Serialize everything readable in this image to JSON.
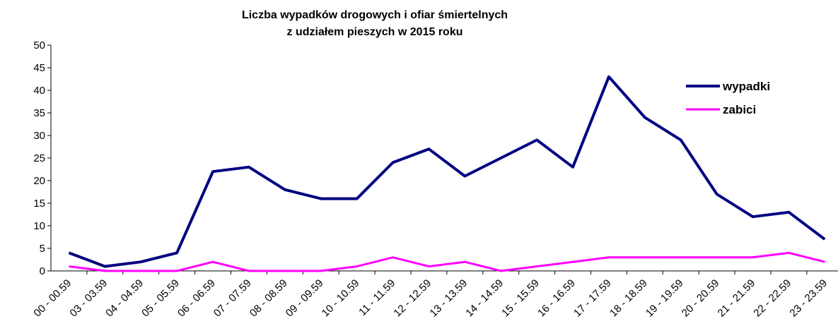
{
  "chart_data": {
    "type": "line",
    "title": [
      "Liczba wypadków drogowych i ofiar śmiertelnych",
      "z udziałem pieszych w 2015 roku"
    ],
    "categories": [
      "00 - 00.59",
      "03 - 03.59",
      "04 - 04.59",
      "05 - 05.59",
      "06 - 06.59",
      "07 - 07.59",
      "08 - 08.59",
      "09 - 09.59",
      "10 - 10.59",
      "11 - 11.59",
      "12 - 12.59",
      "13 - 13.59",
      "14 - 14.59",
      "15 - 15.59",
      "16 - 16.59",
      "17 - 17.59",
      "18 - 18.59",
      "19 - 19.59",
      "20 - 20.59",
      "21 - 21.59",
      "22 - 22.59",
      "23 - 23.59"
    ],
    "series": [
      {
        "name": "wypadki",
        "color": "#000080",
        "values": [
          4,
          1,
          2,
          4,
          22,
          23,
          18,
          16,
          16,
          24,
          27,
          21,
          25,
          29,
          23,
          43,
          34,
          29,
          17,
          12,
          13,
          7
        ]
      },
      {
        "name": "zabici",
        "color": "#ff00ff",
        "values": [
          1,
          0,
          0,
          0,
          2,
          0,
          0,
          0,
          1,
          3,
          1,
          2,
          0,
          1,
          2,
          3,
          3,
          3,
          3,
          3,
          4,
          2
        ]
      }
    ],
    "ylim": [
      0,
      50
    ],
    "yticks": [
      0,
      5,
      10,
      15,
      20,
      25,
      30,
      35,
      40,
      45,
      50
    ],
    "grid": false,
    "legend": "top-right"
  }
}
